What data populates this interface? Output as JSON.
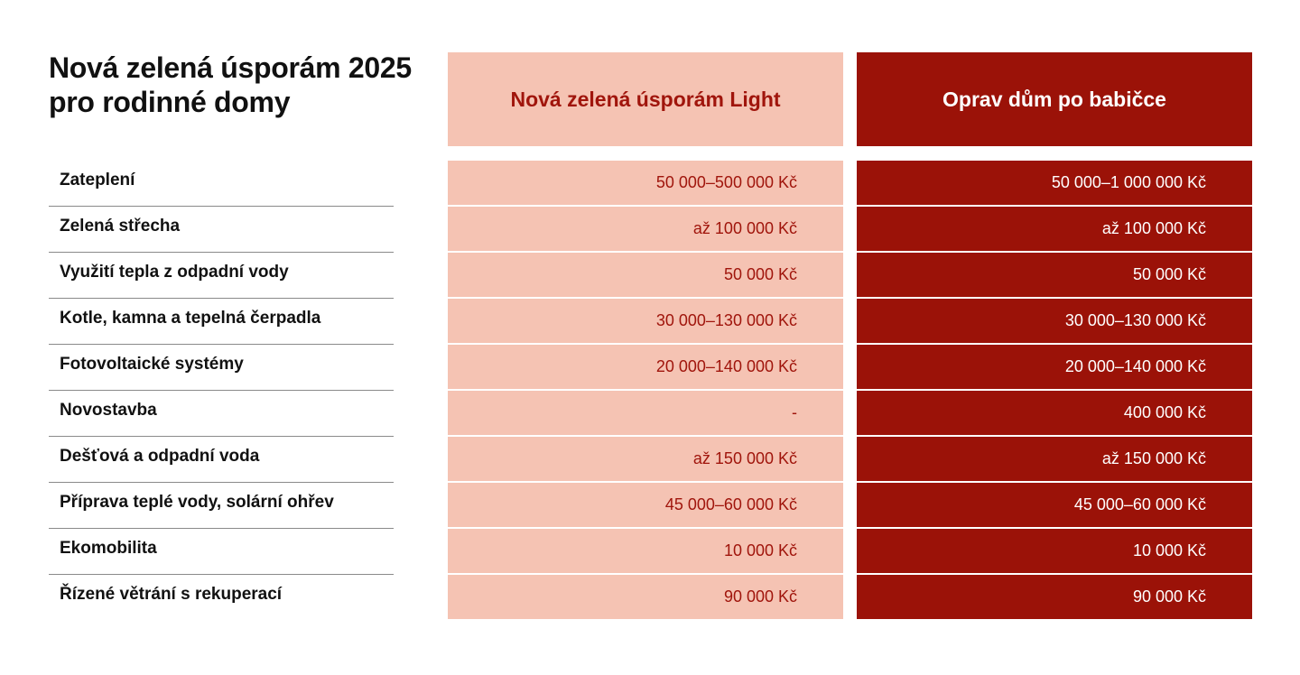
{
  "title": {
    "line1": "Nová zelená úsporám 2025",
    "line2": "pro rodinné domy"
  },
  "columns": {
    "light": "Nová zelená úsporám Light",
    "babicka": "Oprav dům po babičce"
  },
  "rows": [
    {
      "label": "Zateplení",
      "light": "50 000–500 000 Kč",
      "babicka": "50 000–1 000 000 Kč"
    },
    {
      "label": "Zelená střecha",
      "light": "až 100 000 Kč",
      "babicka": "až 100 000 Kč"
    },
    {
      "label": "Využití tepla z odpadní vody",
      "light": "50 000 Kč",
      "babicka": "50 000 Kč"
    },
    {
      "label": "Kotle, kamna a tepelná čerpadla",
      "light": "30 000–130 000 Kč",
      "babicka": "30 000–130 000 Kč"
    },
    {
      "label": "Fotovoltaické systémy",
      "light": "20 000–140 000 Kč",
      "babicka": "20 000–140 000 Kč"
    },
    {
      "label": "Novostavba",
      "light": "-",
      "babicka": "400 000 Kč"
    },
    {
      "label": "Dešťová a odpadní voda",
      "light": "až 150 000 Kč",
      "babicka": "až 150 000 Kč"
    },
    {
      "label": "Příprava teplé vody, solární ohřev",
      "light": "45 000–60 000 Kč",
      "babicka": "45 000–60 000 Kč"
    },
    {
      "label": "Ekomobilita",
      "light": "10 000 Kč",
      "babicka": "10 000 Kč"
    },
    {
      "label": "Řízené větrání s rekuperací",
      "light": "90 000 Kč",
      "babicka": "90 000 Kč"
    }
  ],
  "colors": {
    "light_bg": "#f5c3b3",
    "light_text": "#a0150c",
    "babicka_bg": "#9b1208",
    "babicka_text": "#ffffff"
  }
}
